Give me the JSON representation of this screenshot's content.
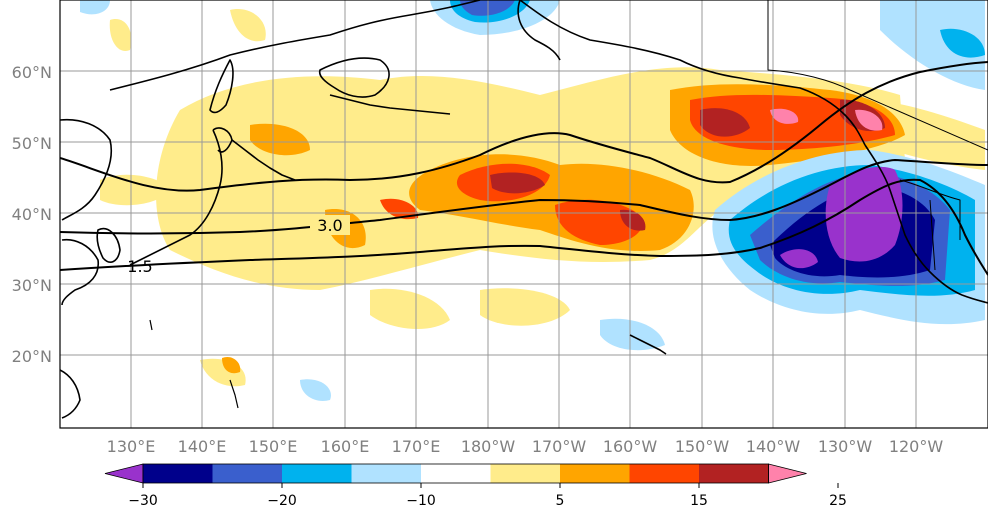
{
  "map": {
    "lat_labels": [
      "60°N",
      "50°N",
      "40°N",
      "30°N",
      "20°N"
    ],
    "lon_labels": [
      "130°E",
      "140°E",
      "150°E",
      "160°E",
      "170°E",
      "180°W",
      "170°W",
      "160°W",
      "150°W",
      "140°W",
      "130°W",
      "120°W"
    ],
    "contour_labels": [
      "3.0",
      "1.5"
    ]
  },
  "colorbar": {
    "tick_labels": [
      "−30",
      "−20",
      "−10",
      "5",
      "15",
      "25"
    ],
    "colors": [
      "#9932cc",
      "#00008b",
      "#3a5fcd",
      "#00b2ee",
      "#b0e2ff",
      "#ffffff",
      "#ffec8b",
      "#ffa500",
      "#ff4500",
      "#b22222",
      "#ff82ab"
    ]
  },
  "colors": {
    "purple": "#9932cc",
    "navy": "#00008b",
    "royal": "#3a5fcd",
    "sky": "#00b2ee",
    "pale_blue": "#b0e2ff",
    "pale_yellow": "#ffec8b",
    "orange": "#ffa500",
    "red_orange": "#ff4500",
    "dark_red": "#b22222",
    "pink": "#ff82ab",
    "grid": "#999999",
    "coast": "#000000"
  }
}
